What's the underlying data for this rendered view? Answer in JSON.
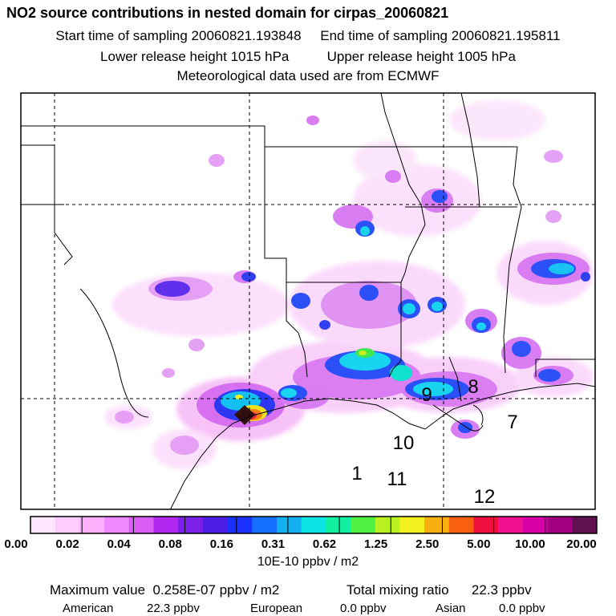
{
  "header": {
    "title": "NO2 source contributions in nested domain for cirpas_20060821",
    "start_label": "Start time of sampling 20060821.193848",
    "end_label": "End time of sampling 20060821.195811",
    "lower_release": "Lower release height 1015 hPa",
    "upper_release": "Upper release height 1005 hPa",
    "met_data": "Meteorological data used are from ECMWF"
  },
  "map": {
    "track_points": [
      {
        "label": "1"
      },
      {
        "label": "7"
      },
      {
        "label": "8"
      },
      {
        "label": "9"
      },
      {
        "label": "10"
      },
      {
        "label": "11"
      },
      {
        "label": "12"
      }
    ]
  },
  "colorbar": {
    "colors": [
      "#ffe8ff",
      "#ffccff",
      "#fbb0fb",
      "#ee88ff",
      "#d95cf5",
      "#b328f0",
      "#7a20e8",
      "#4c1ee4",
      "#1a30ff",
      "#1670ff",
      "#12b0f0",
      "#0ce4e4",
      "#10f0a0",
      "#50f040",
      "#b8f020",
      "#f4f020",
      "#f8b010",
      "#f86010",
      "#f01040",
      "#f01090",
      "#d800a8",
      "#a00080",
      "#601050"
    ],
    "ticks": [
      "0.00",
      "0.02",
      "0.04",
      "0.08",
      "0.16",
      "0.31",
      "0.62",
      "1.25",
      "2.50",
      "5.00",
      "10.00",
      "20.00"
    ],
    "units": "10E-10 ppbv / m2"
  },
  "summary": {
    "max_label": "Maximum value",
    "max_value": "0.258E-07 ppbv / m2",
    "total_label": "Total mixing ratio",
    "total_value": "22.3 ppbv",
    "regions": [
      {
        "name": "American",
        "value": "22.3 ppbv"
      },
      {
        "name": "European",
        "value": "0.0 ppbv"
      },
      {
        "name": "Asian",
        "value": "0.0 ppbv"
      }
    ]
  }
}
